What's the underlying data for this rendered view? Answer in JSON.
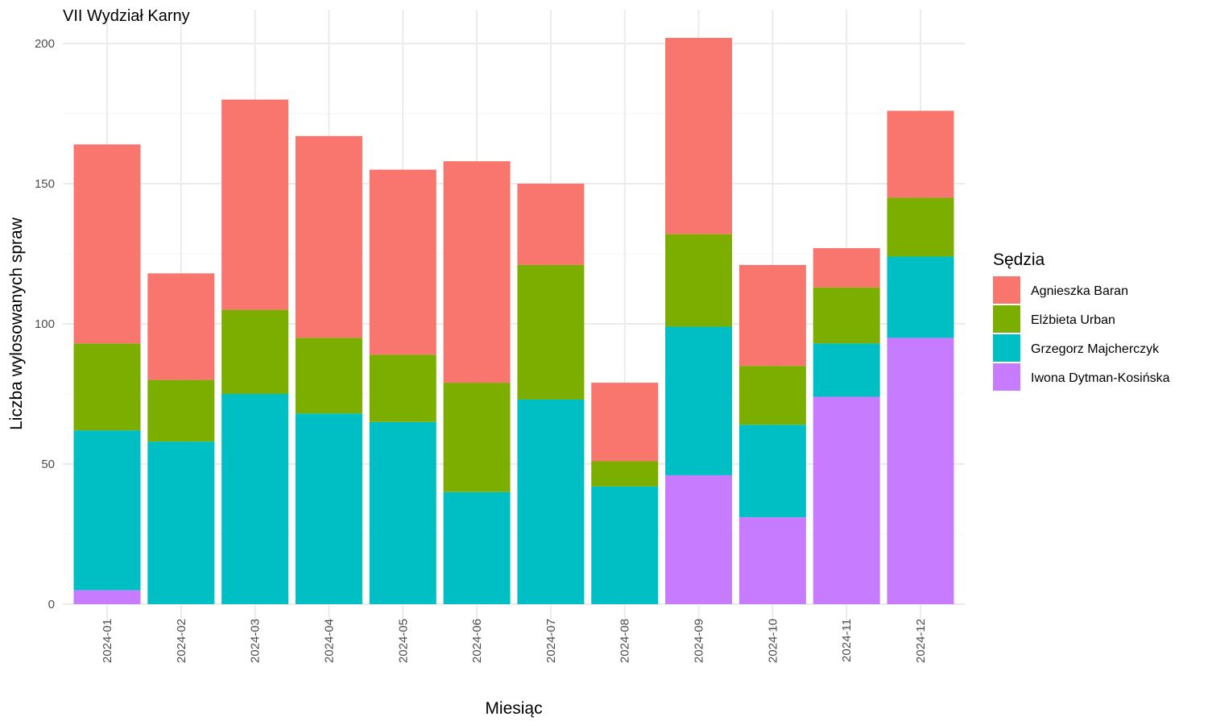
{
  "chart_data": {
    "type": "bar",
    "stacked": true,
    "title": "VII Wydział Karny",
    "xlabel": "Miesiąc",
    "ylabel": "Liczba wylosowanych spraw",
    "ylim": [
      0,
      202
    ],
    "yticks": [
      0,
      50,
      100,
      150,
      200
    ],
    "grid": true,
    "legend_position": "right",
    "legend_title": "Sędzia",
    "categories": [
      "2024-01",
      "2024-02",
      "2024-03",
      "2024-04",
      "2024-05",
      "2024-06",
      "2024-07",
      "2024-08",
      "2024-09",
      "2024-10",
      "2024-11",
      "2024-12"
    ],
    "series": [
      {
        "name": "Agnieszka Baran",
        "color": "#F8766D",
        "values": [
          71,
          38,
          75,
          72,
          66,
          79,
          29,
          28,
          70,
          36,
          14,
          31
        ]
      },
      {
        "name": "Elżbieta Urban",
        "color": "#7CAE00",
        "values": [
          31,
          22,
          30,
          27,
          24,
          39,
          48,
          9,
          33,
          21,
          20,
          21
        ]
      },
      {
        "name": "Grzegorz Majcherczyk",
        "color": "#00BFC4",
        "values": [
          57,
          58,
          75,
          68,
          65,
          40,
          73,
          42,
          53,
          33,
          19,
          29
        ]
      },
      {
        "name": "Iwona Dytman-Kosińska",
        "color": "#C77CFF",
        "values": [
          5,
          0,
          0,
          0,
          0,
          0,
          0,
          0,
          46,
          31,
          74,
          95
        ]
      }
    ]
  }
}
